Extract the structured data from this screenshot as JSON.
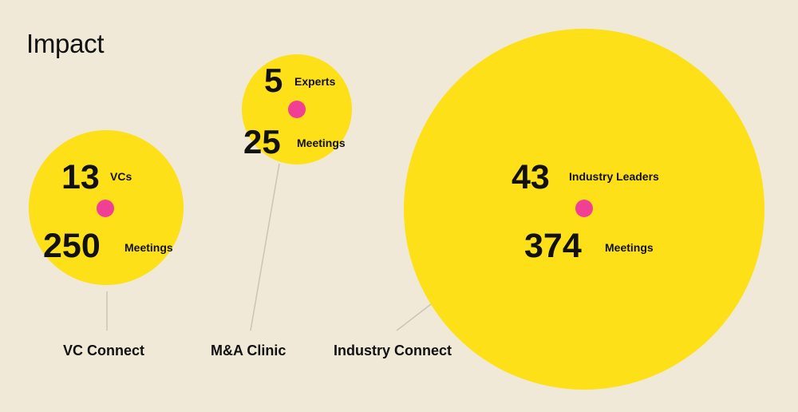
{
  "title": "Impact",
  "programs": [
    {
      "name": "VC Connect",
      "stat1": {
        "value": "13",
        "unit": "VCs"
      },
      "stat2": {
        "value": "250",
        "unit": "Meetings"
      }
    },
    {
      "name": "M&A Clinic",
      "stat1": {
        "value": "5",
        "unit": "Experts"
      },
      "stat2": {
        "value": "25",
        "unit": "Meetings"
      }
    },
    {
      "name": "Industry Connect",
      "stat1": {
        "value": "43",
        "unit": "Industry Leaders"
      },
      "stat2": {
        "value": "374",
        "unit": "Meetings"
      }
    }
  ],
  "colors": {
    "background": "#f0e9d8",
    "circle": "#fde017",
    "dot": "#f13f95",
    "connector": "#c9c4b6"
  }
}
